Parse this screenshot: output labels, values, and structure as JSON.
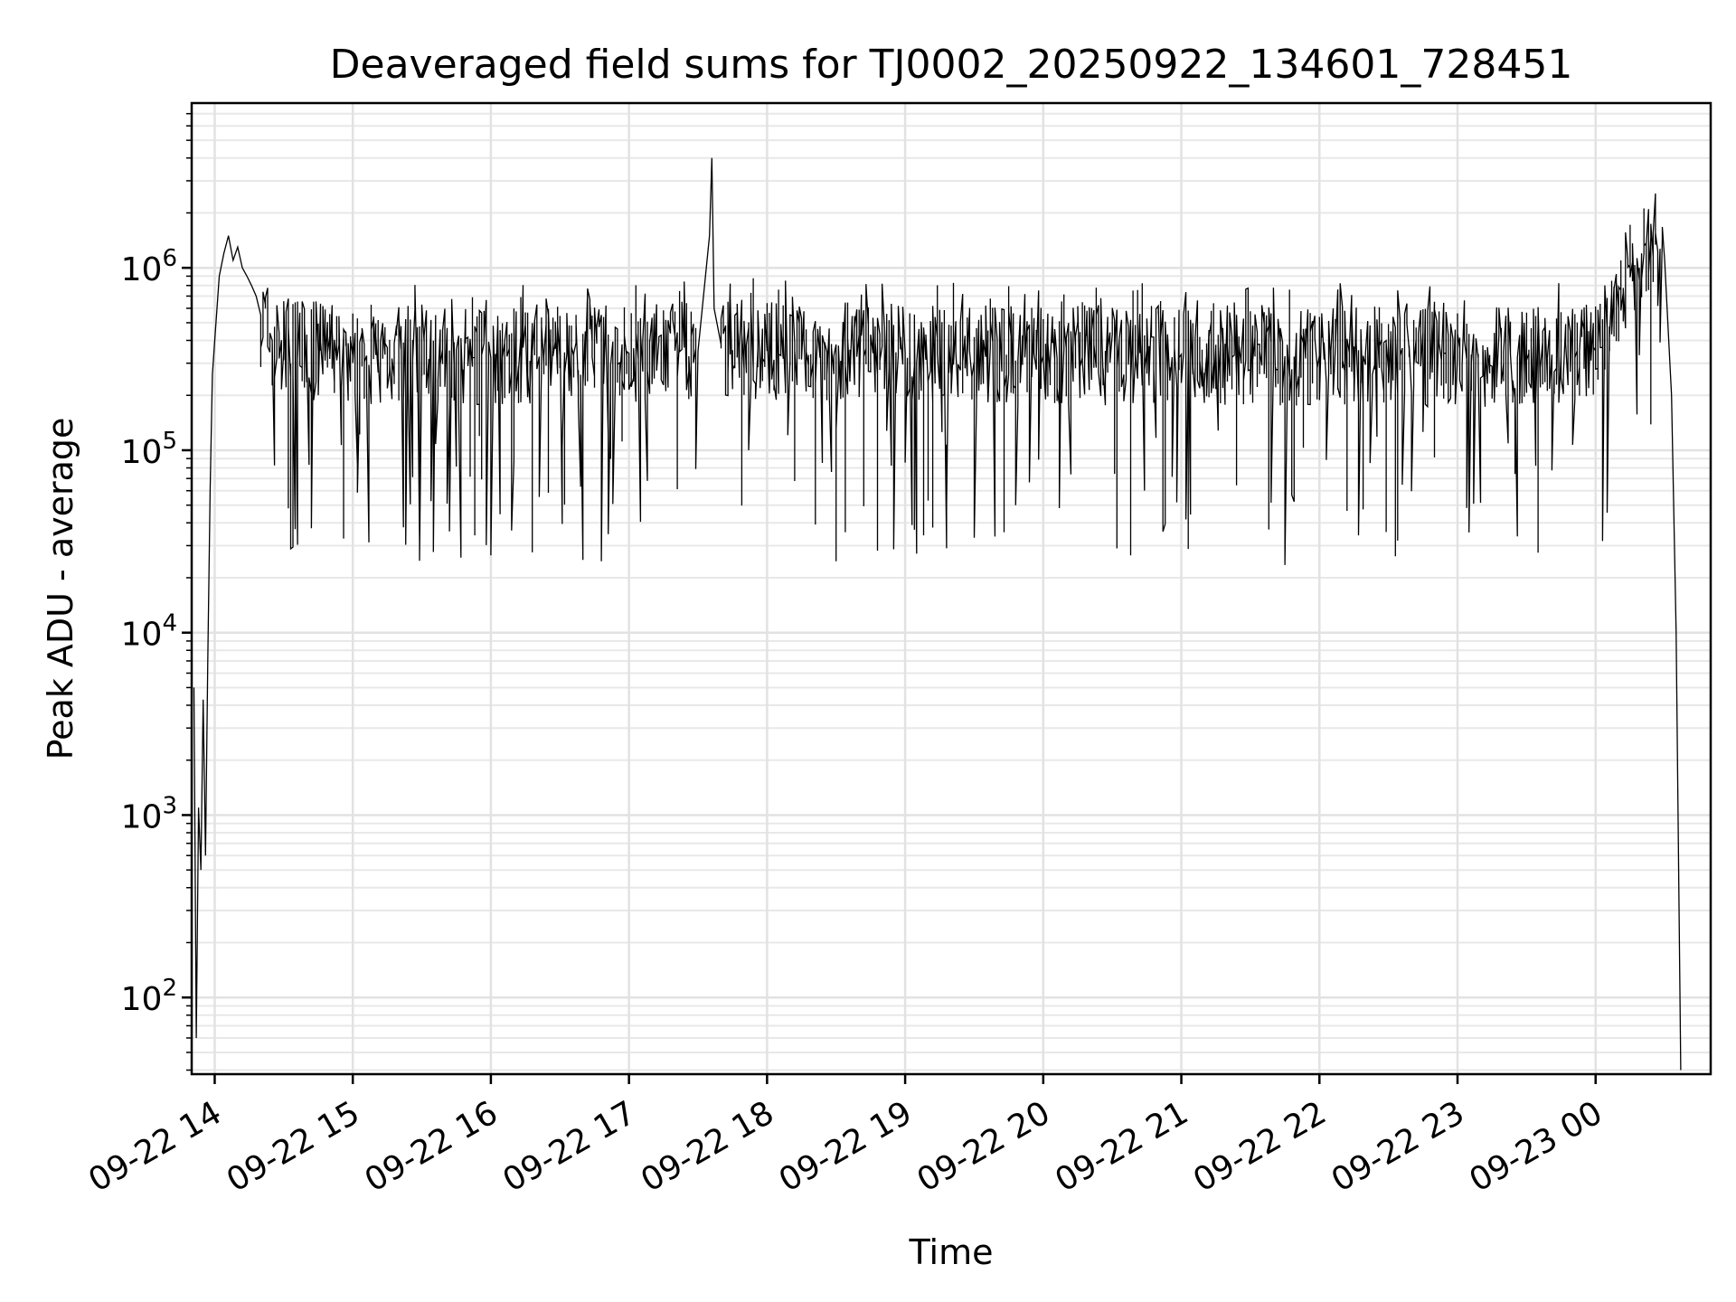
{
  "chart_data": {
    "type": "line",
    "title": "Deaveraged field sums for TJ0002_20250922_134601_728451",
    "xlabel": "Time",
    "ylabel": "Peak ADU - average",
    "yscale": "log",
    "ylim": [
      38,
      8000000
    ],
    "xlim": [
      "2025-09-22 13:50",
      "2025-09-23 00:50"
    ],
    "grid": "both (major and minor)",
    "x_ticks": [
      "09-22 14",
      "09-22 15",
      "09-22 16",
      "09-22 17",
      "09-22 18",
      "09-22 19",
      "09-22 20",
      "09-22 21",
      "09-22 22",
      "09-22 23",
      "09-23 00"
    ],
    "y_ticks": [
      {
        "base": "10",
        "exp": "2",
        "value": 100
      },
      {
        "base": "10",
        "exp": "3",
        "value": 1000
      },
      {
        "base": "10",
        "exp": "4",
        "value": 10000
      },
      {
        "base": "10",
        "exp": "5",
        "value": 100000
      },
      {
        "base": "10",
        "exp": "6",
        "value": 1000000
      }
    ],
    "series": [
      {
        "color": "#000000",
        "x": [
          "2025-09-22 13:51",
          "2025-09-22 13:52",
          "2025-09-22 13:53",
          "2025-09-22 13:54",
          "2025-09-22 13:55",
          "2025-09-22 13:56",
          "2025-09-22 13:57",
          "2025-09-22 13:58",
          "2025-09-22 13:59",
          "2025-09-22 14:00",
          "2025-09-22 14:02",
          "2025-09-22 14:04",
          "2025-09-22 14:06",
          "2025-09-22 14:08",
          "2025-09-22 14:10",
          "2025-09-22 14:12",
          "2025-09-22 14:14",
          "2025-09-22 14:16",
          "2025-09-22 14:18",
          "2025-09-22 14:20",
          "2025-09-22 14:25",
          "2025-09-22 14:30",
          "2025-09-22 14:45",
          "2025-09-22 15:00",
          "2025-09-22 15:30",
          "2025-09-22 16:00",
          "2025-09-22 16:30",
          "2025-09-22 17:00",
          "2025-09-22 17:30",
          "2025-09-22 17:35",
          "2025-09-22 17:36",
          "2025-09-22 17:37",
          "2025-09-22 17:40",
          "2025-09-22 18:00",
          "2025-09-22 19:00",
          "2025-09-22 20:00",
          "2025-09-22 21:00",
          "2025-09-22 22:00",
          "2025-09-22 23:00",
          "2025-09-22 23:45",
          "2025-09-23 00:00",
          "2025-09-23 00:10",
          "2025-09-23 00:15",
          "2025-09-23 00:20",
          "2025-09-23 00:25",
          "2025-09-23 00:30",
          "2025-09-23 00:33",
          "2025-09-23 00:35",
          "2025-09-23 00:37"
        ],
        "y": [
          5000,
          60,
          1100,
          500,
          4300,
          600,
          7000,
          60000,
          260000,
          400000,
          900000,
          1200000,
          1500000,
          1100000,
          1300000,
          1000000,
          900000,
          800000,
          700000,
          550000,
          400000,
          350000,
          350000,
          330000,
          340000,
          320000,
          330000,
          340000,
          350000,
          1500000,
          4000000,
          600000,
          380000,
          350000,
          340000,
          330000,
          335000,
          330000,
          320000,
          330000,
          350000,
          600000,
          1000000,
          1200000,
          1150000,
          1100000,
          200000,
          10000,
          40
        ]
      }
    ]
  }
}
